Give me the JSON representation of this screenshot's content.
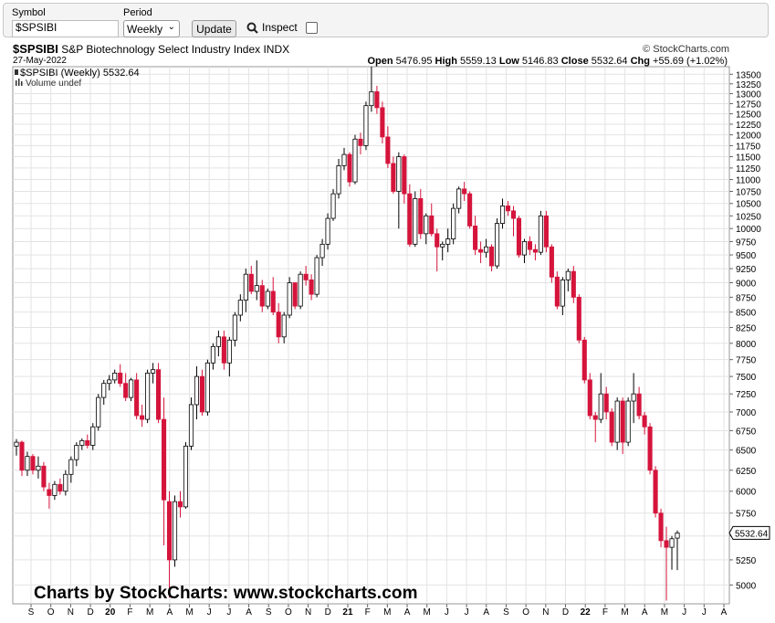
{
  "toolbar": {
    "symbol_label": "Symbol",
    "symbol_value": "$SPSIBI",
    "period_label": "Period",
    "period_value": "Weekly",
    "update_label": "Update",
    "inspect_label": "Inspect"
  },
  "copyright": "© StockCharts.com",
  "header": {
    "symbol": "$SPSIBI",
    "name": "S&P Biotechnology Select Industry Index",
    "exchange": "INDX",
    "date": "27-May-2022",
    "open_label": "Open",
    "open": "5476.95",
    "high_label": "High",
    "high": "5559.13",
    "low_label": "Low",
    "low": "5146.83",
    "close_label": "Close",
    "close": "5532.64",
    "chg_label": "Chg",
    "chg": "+55.69 (+1.02%)",
    "legend_price": "$SPSIBI (Weekly) 5532.64",
    "legend_volume": "Volume undef"
  },
  "watermark": "Charts by StockCharts:  www.stockcharts.com",
  "colors": {
    "up": "#ffffff",
    "down": "#d5143c",
    "outline": "#000000",
    "grid": "#e3e3e3"
  },
  "chart_data": {
    "type": "candlestick",
    "y_scale": "log",
    "ylim": [
      4820,
      13700
    ],
    "yticks": [
      5000,
      5250,
      5500,
      5750,
      6000,
      6250,
      6500,
      6750,
      7000,
      7250,
      7500,
      7750,
      8000,
      8250,
      8500,
      8750,
      9000,
      9250,
      9500,
      9750,
      10000,
      10250,
      10500,
      10750,
      11000,
      11250,
      11500,
      11750,
      12000,
      12250,
      12500,
      12750,
      13000,
      13250,
      13500
    ],
    "x_labels": [
      "S",
      "O",
      "N",
      "D",
      "20",
      "F",
      "M",
      "A",
      "M",
      "J",
      "J",
      "A",
      "S",
      "O",
      "N",
      "D",
      "21",
      "F",
      "M",
      "A",
      "M",
      "J",
      "J",
      "A",
      "S",
      "O",
      "N",
      "D",
      "22",
      "F",
      "M",
      "A",
      "M",
      "J",
      "J",
      "A"
    ],
    "last_price_label": "5532.64",
    "ohlc": [
      [
        6550,
        6640,
        6430,
        6600
      ],
      [
        6600,
        6620,
        6180,
        6250
      ],
      [
        6250,
        6480,
        6180,
        6420
      ],
      [
        6420,
        6450,
        6200,
        6250
      ],
      [
        6250,
        6420,
        6150,
        6300
      ],
      [
        6300,
        6350,
        6000,
        6050
      ],
      [
        6020,
        6100,
        5800,
        5950
      ],
      [
        5950,
        6120,
        5900,
        6080
      ],
      [
        6080,
        6150,
        5960,
        6000
      ],
      [
        6000,
        6250,
        5950,
        6200
      ],
      [
        6200,
        6420,
        6100,
        6380
      ],
      [
        6380,
        6600,
        6300,
        6560
      ],
      [
        6560,
        6650,
        6500,
        6620
      ],
      [
        6620,
        6700,
        6520,
        6560
      ],
      [
        6560,
        6850,
        6500,
        6800
      ],
      [
        6800,
        7250,
        6750,
        7200
      ],
      [
        7200,
        7450,
        7100,
        7400
      ],
      [
        7400,
        7520,
        7300,
        7450
      ],
      [
        7450,
        7600,
        7400,
        7550
      ],
      [
        7550,
        7680,
        7350,
        7400
      ],
      [
        7400,
        7550,
        7150,
        7200
      ],
      [
        7200,
        7480,
        7150,
        7450
      ],
      [
        7450,
        7550,
        6900,
        6950
      ],
      [
        6950,
        7100,
        6800,
        6900
      ],
      [
        6900,
        7600,
        6850,
        7550
      ],
      [
        7550,
        7700,
        7400,
        7600
      ],
      [
        7600,
        7700,
        6850,
        6900
      ],
      [
        6900,
        7200,
        5400,
        5900
      ],
      [
        5880,
        6000,
        4880,
        5250
      ],
      [
        5250,
        5950,
        5180,
        5880
      ],
      [
        5880,
        6000,
        5700,
        5820
      ],
      [
        5820,
        6600,
        5800,
        6550
      ],
      [
        6550,
        7200,
        6500,
        7100
      ],
      [
        7100,
        7650,
        6900,
        7500
      ],
      [
        7500,
        7600,
        6950,
        7000
      ],
      [
        7000,
        7750,
        6950,
        7700
      ],
      [
        7700,
        8000,
        7600,
        7950
      ],
      [
        7950,
        8200,
        7800,
        8100
      ],
      [
        8100,
        8200,
        7600,
        7700
      ],
      [
        7700,
        8100,
        7500,
        8050
      ],
      [
        8050,
        8500,
        7950,
        8450
      ],
      [
        8450,
        8800,
        8350,
        8700
      ],
      [
        8700,
        9250,
        8500,
        9150
      ],
      [
        9150,
        9300,
        8800,
        8850
      ],
      [
        8850,
        9400,
        8700,
        8950
      ],
      [
        8950,
        9050,
        8500,
        8600
      ],
      [
        8600,
        8900,
        8550,
        8850
      ],
      [
        8850,
        9100,
        8450,
        8500
      ],
      [
        8500,
        8650,
        8000,
        8100
      ],
      [
        8100,
        8500,
        8000,
        8450
      ],
      [
        8450,
        9100,
        8400,
        9000
      ],
      [
        9000,
        9000,
        8550,
        8600
      ],
      [
        8600,
        9200,
        8550,
        9150
      ],
      [
        9150,
        9300,
        8950,
        9050
      ],
      [
        9050,
        9150,
        8700,
        8800
      ],
      [
        8800,
        9500,
        8750,
        9450
      ],
      [
        9450,
        9800,
        9300,
        9700
      ],
      [
        9700,
        10300,
        9600,
        10200
      ],
      [
        10200,
        10800,
        10150,
        10700
      ],
      [
        10700,
        11450,
        10600,
        11300
      ],
      [
        11300,
        11700,
        11200,
        11550
      ],
      [
        11550,
        11600,
        10850,
        10950
      ],
      [
        10950,
        12000,
        10900,
        11900
      ],
      [
        11900,
        12050,
        11550,
        11750
      ],
      [
        11750,
        12800,
        11650,
        12700
      ],
      [
        12700,
        13700,
        12550,
        13050
      ],
      [
        13050,
        13200,
        12500,
        12650
      ],
      [
        12650,
        12800,
        11800,
        11950
      ],
      [
        11950,
        12200,
        11250,
        11350
      ],
      [
        11350,
        11500,
        10700,
        10750
      ],
      [
        10750,
        11600,
        10000,
        11500
      ],
      [
        11500,
        11550,
        10500,
        10700
      ],
      [
        10700,
        10900,
        9650,
        9700
      ],
      [
        9700,
        10750,
        9650,
        10600
      ],
      [
        10600,
        10800,
        9800,
        9900
      ],
      [
        9900,
        10300,
        9700,
        10250
      ],
      [
        10250,
        10500,
        9850,
        9900
      ],
      [
        9900,
        10000,
        9200,
        9650
      ],
      [
        9650,
        9750,
        9400,
        9700
      ],
      [
        9700,
        10000,
        9550,
        9800
      ],
      [
        9800,
        10500,
        9700,
        10400
      ],
      [
        10400,
        10850,
        10300,
        10800
      ],
      [
        10800,
        10950,
        10550,
        10700
      ],
      [
        10700,
        10750,
        10000,
        10050
      ],
      [
        10050,
        10250,
        9500,
        9600
      ],
      [
        9600,
        9750,
        9350,
        9550
      ],
      [
        9550,
        9800,
        9450,
        9650
      ],
      [
        9650,
        9700,
        9200,
        9300
      ],
      [
        9300,
        10200,
        9250,
        10100
      ],
      [
        10100,
        10600,
        10000,
        10450
      ],
      [
        10450,
        10550,
        10250,
        10350
      ],
      [
        10350,
        10450,
        9850,
        10200
      ],
      [
        10200,
        10250,
        9450,
        9500
      ],
      [
        9500,
        9800,
        9350,
        9750
      ],
      [
        9750,
        9850,
        9500,
        9600
      ],
      [
        9600,
        9700,
        9400,
        9550
      ],
      [
        9550,
        10350,
        9500,
        10250
      ],
      [
        10250,
        10350,
        9550,
        9650
      ],
      [
        9650,
        9700,
        9000,
        9100
      ],
      [
        9100,
        9200,
        8550,
        8600
      ],
      [
        8600,
        9100,
        8450,
        9050
      ],
      [
        9050,
        9250,
        8850,
        9200
      ],
      [
        9200,
        9300,
        8650,
        8750
      ],
      [
        8750,
        8800,
        8000,
        8050
      ],
      [
        8050,
        8100,
        7400,
        7450
      ],
      [
        7450,
        7550,
        6900,
        6950
      ],
      [
        6950,
        7000,
        6600,
        6900
      ],
      [
        6900,
        7550,
        6850,
        7250
      ],
      [
        7250,
        7350,
        6900,
        7000
      ],
      [
        7000,
        7050,
        6550,
        6600
      ],
      [
        6600,
        7200,
        6500,
        7150
      ],
      [
        7150,
        7200,
        6450,
        6600
      ],
      [
        6600,
        7200,
        6550,
        7150
      ],
      [
        7150,
        7550,
        6850,
        7250
      ],
      [
        7250,
        7350,
        6900,
        6950
      ],
      [
        6950,
        7000,
        6700,
        6800
      ],
      [
        6800,
        6850,
        6200,
        6250
      ],
      [
        6250,
        6300,
        5700,
        5750
      ],
      [
        5750,
        5800,
        5380,
        5450
      ],
      [
        5450,
        5600,
        4850,
        5380
      ],
      [
        5380,
        5500,
        5150,
        5470
      ],
      [
        5476.95,
        5559.13,
        5146.83,
        5532.64
      ]
    ]
  }
}
